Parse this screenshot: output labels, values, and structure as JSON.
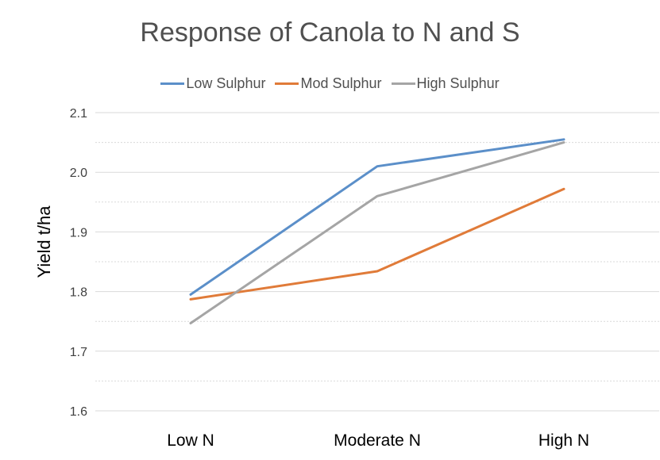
{
  "chart_data": {
    "type": "line",
    "title": "Response of Canola to N and S",
    "xlabel": "",
    "ylabel": "Yield t/ha",
    "categories": [
      "Low N",
      "Moderate N",
      "High N"
    ],
    "ylim": [
      1.6,
      2.1
    ],
    "yticks": [
      "1.6",
      "1.7",
      "1.8",
      "1.9",
      "2.0",
      "2.1"
    ],
    "grid": true,
    "legend": "top",
    "series": [
      {
        "name": "Low Sulphur",
        "color": "#5b8fc9",
        "values": [
          1.795,
          2.01,
          2.055
        ]
      },
      {
        "name": "Mod Sulphur",
        "color": "#e07b39",
        "values": [
          1.787,
          1.834,
          1.972
        ]
      },
      {
        "name": "High Sulphur",
        "color": "#a5a5a5",
        "values": [
          1.747,
          1.96,
          2.05
        ]
      }
    ]
  }
}
